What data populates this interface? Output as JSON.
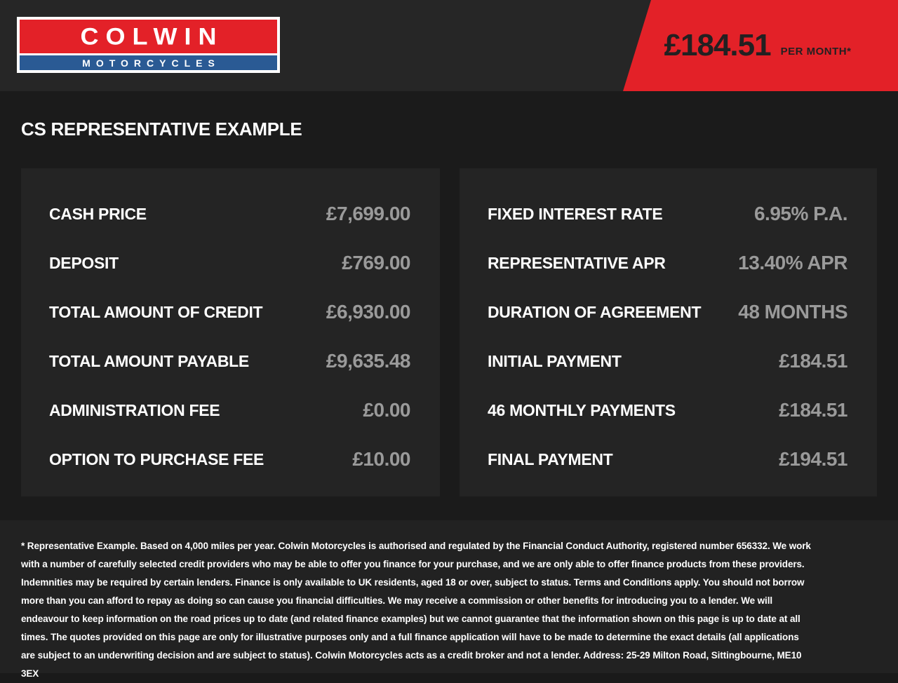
{
  "header": {
    "logo": {
      "line1": "COLWIN",
      "line2": "MOTORCYCLES"
    },
    "price_banner": {
      "amount": "£184.51",
      "period": "PER MONTH*"
    }
  },
  "page_title": "CS REPRESENTATIVE EXAMPLE",
  "finance": {
    "left_rows": [
      {
        "label": "CASH PRICE",
        "value": "£7,699.00"
      },
      {
        "label": "DEPOSIT",
        "value": "£769.00"
      },
      {
        "label": "TOTAL AMOUNT OF CREDIT",
        "value": "£6,930.00"
      },
      {
        "label": "TOTAL AMOUNT PAYABLE",
        "value": "£9,635.48"
      },
      {
        "label": "ADMINISTRATION FEE",
        "value": "£0.00"
      },
      {
        "label": "OPTION TO PURCHASE FEE",
        "value": "£10.00"
      }
    ],
    "right_rows": [
      {
        "label": "FIXED INTEREST RATE",
        "value": "6.95% P.A."
      },
      {
        "label": "REPRESENTATIVE APR",
        "value": "13.40% APR"
      },
      {
        "label": "DURATION OF AGREEMENT",
        "value": "48 MONTHS"
      },
      {
        "label": "INITIAL PAYMENT",
        "value": "£184.51"
      },
      {
        "label": "46 MONTHLY PAYMENTS",
        "value": "£184.51"
      },
      {
        "label": "FINAL PAYMENT",
        "value": "£194.51"
      }
    ]
  },
  "footer": {
    "disclaimer": "* Representative Example. Based on 4,000 miles per year. Colwin Motorcycles is authorised and regulated by the Financial Conduct Authority, registered number 656332. We work with a number of carefully selected credit providers who may be able to offer you finance for your purchase, and we are only able to offer finance products from these providers. Indemnities may be required by certain lenders. Finance is only available to UK residents, aged 18 or over, subject to status. Terms and Conditions apply. You should not borrow more than you can afford to repay as doing so can cause you financial difficulties. We may receive a commission or other benefits for introducing you to a lender. We will endeavour to keep information on the road prices up to date (and related finance examples) but we cannot guarantee that the information shown on this page is up to date at all times. The quotes provided on this page are only for illustrative purposes only and a full finance application will have to be made to determine the exact details (all applications are subject to an underwriting decision and are subject to status). Colwin Motorcycles acts as a credit broker and not a lender. Address: 25-29 Milton Road, Sittingbourne, ME10 3EX"
  },
  "colors": {
    "accent_red": "#e32128",
    "brand_blue": "#2a5a94",
    "value_gray": "#9a9a9a",
    "banner_text": "#232021"
  }
}
